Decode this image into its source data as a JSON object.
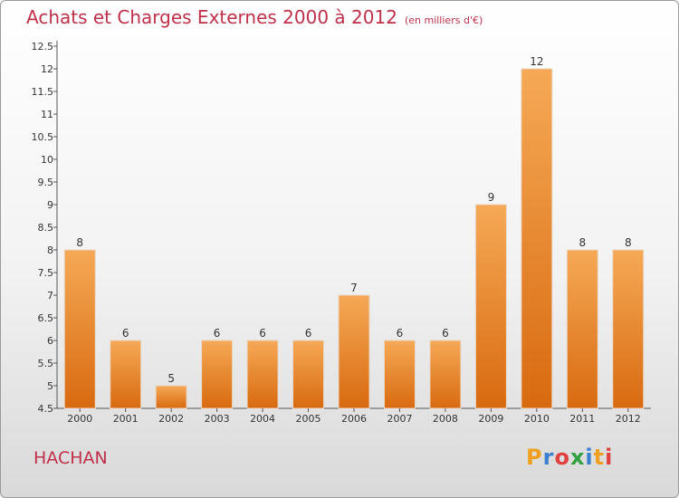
{
  "title": "Achats et Charges Externes 2000 à 2012",
  "subtitle": "(en milliers d'€)",
  "commune": "HACHAN",
  "logo": {
    "text": "Proxiti",
    "letters": [
      "P",
      "r",
      "o",
      "x",
      "i",
      "t",
      "i"
    ],
    "colors": [
      "#f0a020",
      "#3a7fd0",
      "#e04040",
      "#30a040",
      "#3a7fd0",
      "#f0a020",
      "#e04040"
    ]
  },
  "colors": {
    "bar": "#f08a24",
    "bar_top": "#f6a956",
    "bar_bottom": "#d86a10",
    "text_accent": "#c0304a"
  },
  "chart_data": {
    "type": "bar",
    "title": "Achats et Charges Externes 2000 à 2012",
    "categories": [
      "2000",
      "2001",
      "2002",
      "2003",
      "2004",
      "2005",
      "2006",
      "2007",
      "2008",
      "2009",
      "2010",
      "2011",
      "2012"
    ],
    "values": [
      8,
      6,
      5,
      6,
      6,
      6,
      7,
      6,
      6,
      9,
      12,
      8,
      8
    ],
    "ylim": [
      4.5,
      12.5
    ],
    "yticks": [
      "4.5",
      "5",
      "5.5",
      "6",
      "6.5",
      "7",
      "7.5",
      "8",
      "8.5",
      "9",
      "9.5",
      "10",
      "10.5",
      "11",
      "11.5",
      "12",
      "12.5"
    ],
    "grid": false,
    "xlabel": "",
    "ylabel": ""
  }
}
